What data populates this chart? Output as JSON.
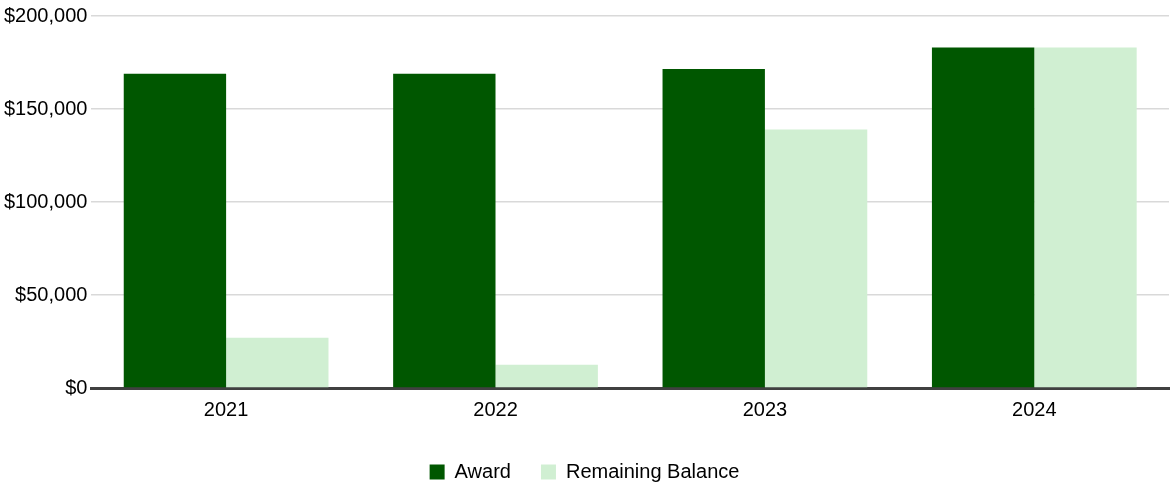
{
  "chart_data": {
    "type": "bar",
    "categories": [
      "2021",
      "2022",
      "2023",
      "2024"
    ],
    "series": [
      {
        "name": "Award",
        "color": "#005700",
        "values": [
          169000,
          169000,
          171500,
          183000
        ]
      },
      {
        "name": "Remaining Balance",
        "color": "#d0efd2",
        "values": [
          27000,
          12500,
          139000,
          183000
        ]
      }
    ],
    "ylim": [
      0,
      200000
    ],
    "yticks": [
      {
        "value": 0,
        "label": "$0"
      },
      {
        "value": 50000,
        "label": "$50,000"
      },
      {
        "value": 100000,
        "label": "$100,000"
      },
      {
        "value": 150000,
        "label": "$150,000"
      },
      {
        "value": 200000,
        "label": "$200,000"
      }
    ],
    "grid": "y",
    "legend": "bottom"
  }
}
